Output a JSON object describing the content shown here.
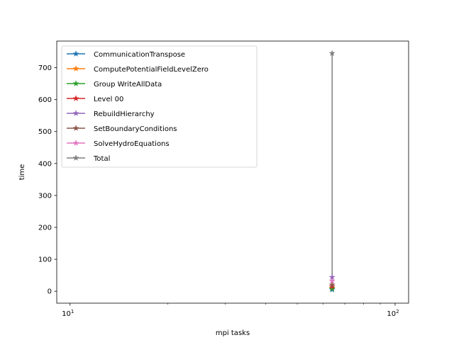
{
  "chart_data": {
    "type": "line",
    "xlabel": "mpi tasks",
    "ylabel": "time",
    "xscale": "log",
    "xlim": [
      9.1,
      110
    ],
    "ylim": [
      -37.3,
      783.3
    ],
    "x_ticks": [
      {
        "value": 10,
        "label": "10",
        "sup": "1"
      },
      {
        "value": 100,
        "label": "10",
        "sup": "2"
      }
    ],
    "y_ticks": [
      0,
      100,
      200,
      300,
      400,
      500,
      600,
      700
    ],
    "legend_position": "upper left",
    "grid": false,
    "series": [
      {
        "name": "CommunicationTranspose",
        "color": "#1f77b4",
        "x": [
          64
        ],
        "y": [
          5
        ]
      },
      {
        "name": "ComputePotentialFieldLevelZero",
        "color": "#ff7f0e",
        "x": [
          64
        ],
        "y": [
          10
        ]
      },
      {
        "name": "Group WriteAllData",
        "color": "#2ca02c",
        "x": [
          64
        ],
        "y": [
          8
        ]
      },
      {
        "name": "Level 00",
        "color": "#d62728",
        "x": [
          64
        ],
        "y": [
          15
        ]
      },
      {
        "name": "RebuildHierarchy",
        "color": "#9467bd",
        "x": [
          64
        ],
        "y": [
          44
        ]
      },
      {
        "name": "SetBoundaryConditions",
        "color": "#8c564b",
        "x": [
          64
        ],
        "y": [
          20
        ]
      },
      {
        "name": "SolveHydroEquations",
        "color": "#e377c2",
        "x": [
          64
        ],
        "y": [
          32
        ]
      },
      {
        "name": "Total",
        "color": "#7f7f7f",
        "x": [
          64
        ],
        "y": [
          745
        ]
      }
    ]
  }
}
